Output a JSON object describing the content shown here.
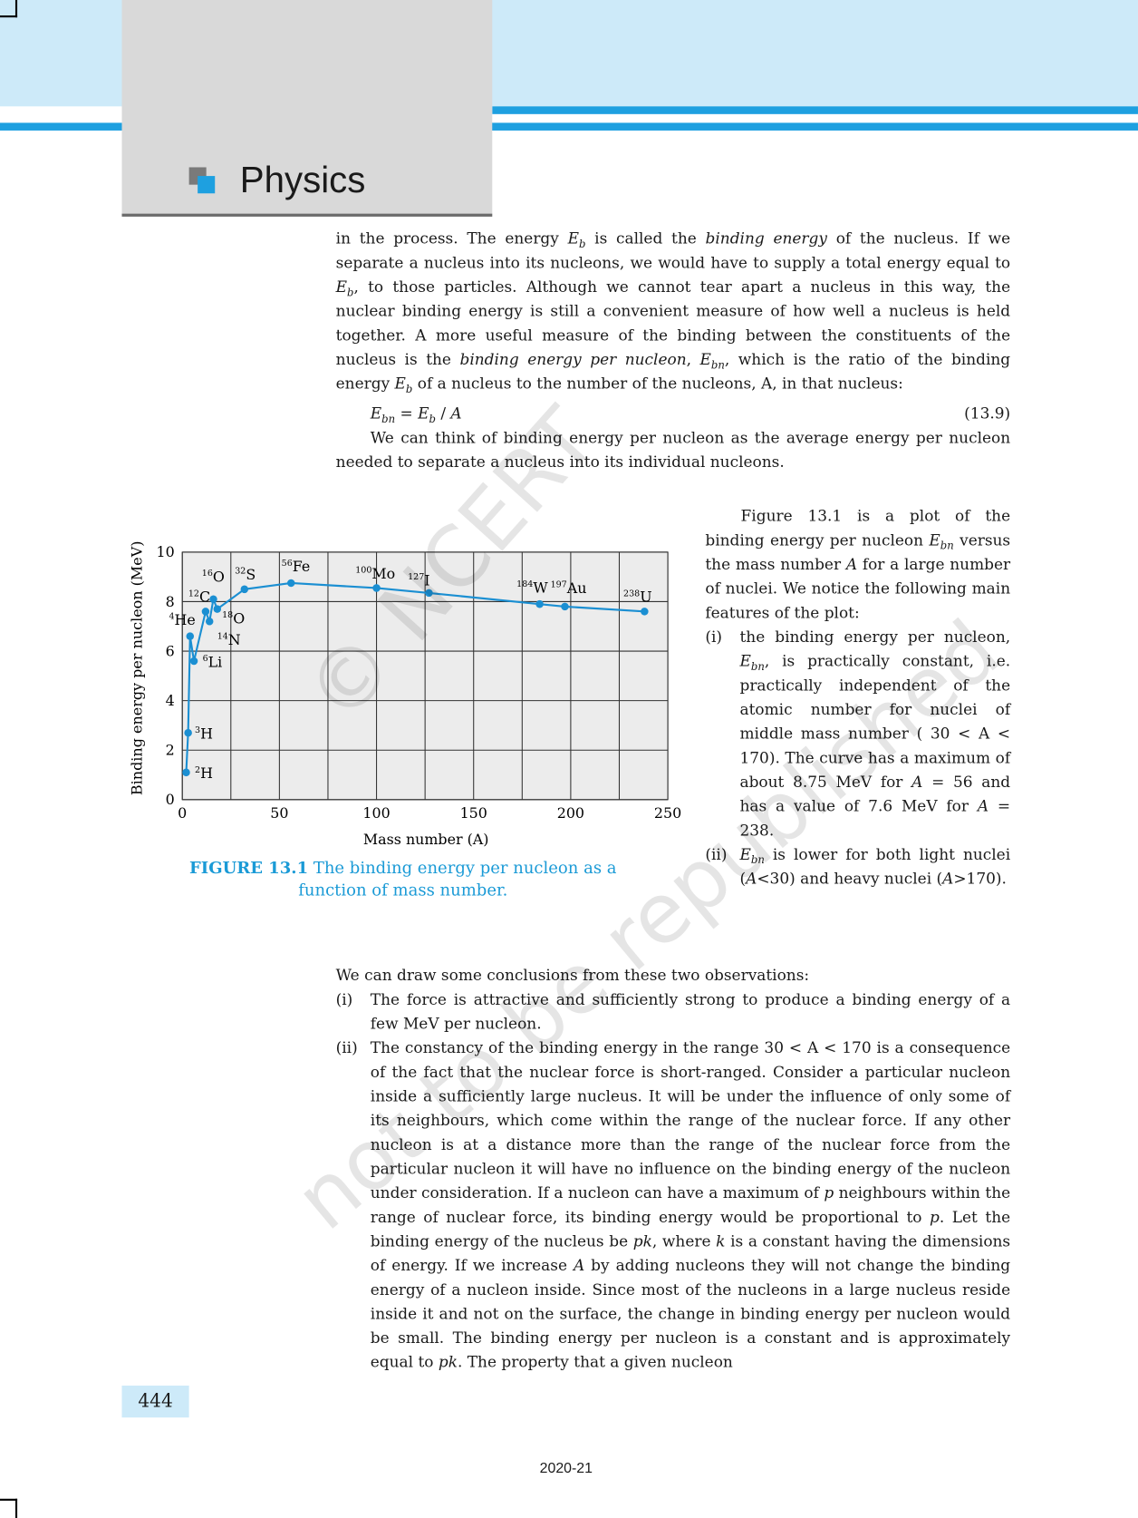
{
  "header": {
    "title": "Physics"
  },
  "intro": [
    {
      "text": "in the process.  The energy "
    },
    {
      "text": "E",
      "style": "italic"
    },
    {
      "text": "b",
      "style": "sub"
    },
    {
      "text": " is called the "
    },
    {
      "text": "binding energy",
      "style": "italic"
    },
    {
      "text": " of the nucleus. If we separate a nucleus into its nucleons, we would have to supply a total energy equal to "
    },
    {
      "text": "E",
      "style": "italic"
    },
    {
      "text": "b",
      "style": "sub"
    },
    {
      "text": ", to those particles.  Although we cannot tear apart a nucleus in this way, the nuclear binding energy is still a convenient measure of how well a nucleus is held together.  A more useful measure of the binding between the constituents of the nucleus is the "
    },
    {
      "text": "binding energy per nucleon",
      "style": "italic"
    },
    {
      "text": ", "
    },
    {
      "text": "E",
      "style": "italic"
    },
    {
      "text": "bn",
      "style": "sub"
    },
    {
      "text": ", which is the ratio of the binding energy "
    },
    {
      "text": "E",
      "style": "italic"
    },
    {
      "text": "b",
      "style": "sub"
    },
    {
      "text": " of a nucleus to the number of the nucleons, A, in that nucleus:"
    }
  ],
  "equation": {
    "expression": [
      {
        "text": "E",
        "style": "italic"
      },
      {
        "text": "bn",
        "style": "sub"
      },
      {
        "text": "  =  "
      },
      {
        "text": "E",
        "style": "italic"
      },
      {
        "text": "b",
        "style": "sub"
      },
      {
        "text": " / "
      },
      {
        "text": "A",
        "style": "italic"
      }
    ],
    "number": "(13.9)"
  },
  "average": [
    {
      "text": "We can think of binding energy per nucleon as the average energy per nucleon needed to separate a nucleus into its individual nucleons."
    }
  ],
  "plot_text": [
    {
      "text": "Figure 13.1 is a plot of the binding energy per nucleon "
    },
    {
      "text": "E",
      "style": "italic"
    },
    {
      "text": "bn",
      "style": "sub"
    },
    {
      "text": " versus the mass number "
    },
    {
      "text": "A",
      "style": "italic"
    },
    {
      "text": " for a large number of nuclei. We notice the following main features of the plot:"
    }
  ],
  "features": [
    {
      "marker": "(i)",
      "segments": [
        {
          "text": "the binding energy per nucleon, "
        },
        {
          "text": "E",
          "style": "italic"
        },
        {
          "text": "bn",
          "style": "sub"
        },
        {
          "text": ", is practically constant, i.e. practically independent of the atomic number for nuclei of middle mass number ( 30 < A < 170). The curve has a maximum of about 8.75 MeV for "
        },
        {
          "text": "A",
          "style": "italic"
        },
        {
          "text": " = 56 and has a value of 7.6 MeV for "
        },
        {
          "text": "A",
          "style": "italic"
        },
        {
          "text": " = 238."
        }
      ]
    },
    {
      "marker": "(ii)",
      "segments": [
        {
          "text": "E",
          "style": "italic"
        },
        {
          "text": "bn",
          "style": "sub"
        },
        {
          "text": " is lower for both light nuclei ("
        },
        {
          "text": "A",
          "style": "italic"
        },
        {
          "text": "<30) and heavy nuclei ("
        },
        {
          "text": "A",
          "style": "italic"
        },
        {
          "text": ">170)."
        }
      ]
    }
  ],
  "conclusions_intro": [
    {
      "text": "We can draw some conclusions from these two observations:"
    }
  ],
  "conclusions": [
    {
      "marker": "(i)",
      "segments": [
        {
          "text": "The force is attractive and sufficiently strong to produce a binding energy of a few MeV per nucleon."
        }
      ]
    },
    {
      "marker": "(ii)",
      "segments": [
        {
          "text": "The constancy of the binding energy in the range 30 < A < 170 is a consequence of the fact that the nuclear force is short-ranged. Consider a particular nucleon inside a sufficiently large nucleus. It will be under the influence of only some of its neighbours, which come within the range of the nuclear force. If any other nucleon is at a distance more than the range of the nuclear force from the particular nucleon it will have no influence on the binding energy of the nucleon under consideration. If a nucleon can have a maximum of "
        },
        {
          "text": "p",
          "style": "italic"
        },
        {
          "text": " neighbours within the range of nuclear force, its binding energy would be proportional to "
        },
        {
          "text": "p",
          "style": "italic"
        },
        {
          "text": ". Let the binding energy of the nucleus be "
        },
        {
          "text": "pk",
          "style": "italic"
        },
        {
          "text": ", where "
        },
        {
          "text": "k",
          "style": "italic"
        },
        {
          "text": " is a constant having the dimensions of energy. If we increase "
        },
        {
          "text": "A",
          "style": "italic"
        },
        {
          "text": " by adding nucleons they will not change the binding energy of a nucleon inside. Since most of the nucleons in a large nucleus reside inside it and not on the surface, the change in binding energy per nucleon would be small. The binding energy per nucleon is a constant and is approximately equal to "
        },
        {
          "text": "pk",
          "style": "italic"
        },
        {
          "text": ". The property that a given nucleon"
        }
      ]
    }
  ],
  "chart_data": {
    "type": "line",
    "x_label": "Mass number (A)",
    "y_label": "Binding energy per nucleon (MeV)",
    "x": [
      2,
      3,
      4,
      6,
      12,
      14,
      16,
      18,
      32,
      56,
      100,
      127,
      184,
      197,
      238
    ],
    "values": [
      1.1,
      2.7,
      6.6,
      5.6,
      7.6,
      7.2,
      8.1,
      7.7,
      8.5,
      8.75,
      8.55,
      8.35,
      7.9,
      7.8,
      7.6
    ],
    "point_labels": [
      {
        "mass": "2",
        "symbol": "H"
      },
      {
        "mass": "3",
        "symbol": "H"
      },
      {
        "mass": "4",
        "symbol": "He"
      },
      {
        "mass": "6",
        "symbol": "Li"
      },
      {
        "mass": "12",
        "symbol": "C"
      },
      {
        "mass": "14",
        "symbol": "N"
      },
      {
        "mass": "16",
        "symbol": "O"
      },
      {
        "mass": "18",
        "symbol": "O"
      },
      {
        "mass": "32",
        "symbol": "S"
      },
      {
        "mass": "56",
        "symbol": "Fe"
      },
      {
        "mass": "100",
        "symbol": "Mo"
      },
      {
        "mass": "127",
        "symbol": "I"
      },
      {
        "mass": "184",
        "symbol": "W"
      },
      {
        "mass": "197",
        "symbol": "Au"
      },
      {
        "mass": "238",
        "symbol": "U"
      }
    ],
    "color": "#1b8fd2",
    "xlim": [
      0,
      250
    ],
    "xticks": [
      0,
      50,
      100,
      150,
      200,
      250
    ],
    "ylim": [
      0,
      10
    ],
    "yticks": [
      0,
      2,
      4,
      6,
      8,
      10
    ],
    "grid": true
  },
  "figure_caption": {
    "label": "FIGURE 13.1",
    "text": "The binding energy per nucleon as a function of mass number."
  },
  "watermark": {
    "line1": "© NCERT",
    "line2": "not to be republished"
  },
  "page_number": "444",
  "footer": "2020-21"
}
